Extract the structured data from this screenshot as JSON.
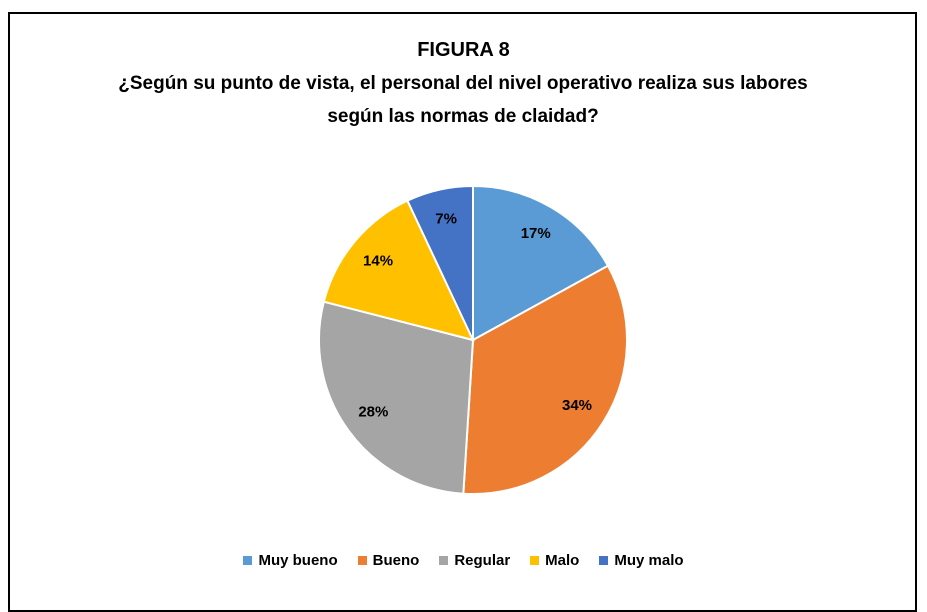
{
  "chart_data": {
    "type": "pie",
    "title": "FIGURA 8",
    "subtitle": "¿Según su punto de vista, el personal del nivel operativo realiza sus labores según las normas de claidad?",
    "categories": [
      "Muy bueno",
      "Bueno",
      "Regular",
      "Malo",
      "Muy malo"
    ],
    "values": [
      17,
      34,
      28,
      14,
      7
    ],
    "value_labels": [
      "17%",
      "34%",
      "28%",
      "14%",
      "7%"
    ],
    "colors": [
      "#5b9bd5",
      "#ed7d31",
      "#a5a5a5",
      "#ffc000",
      "#4472c4"
    ],
    "legend": "bottom"
  }
}
